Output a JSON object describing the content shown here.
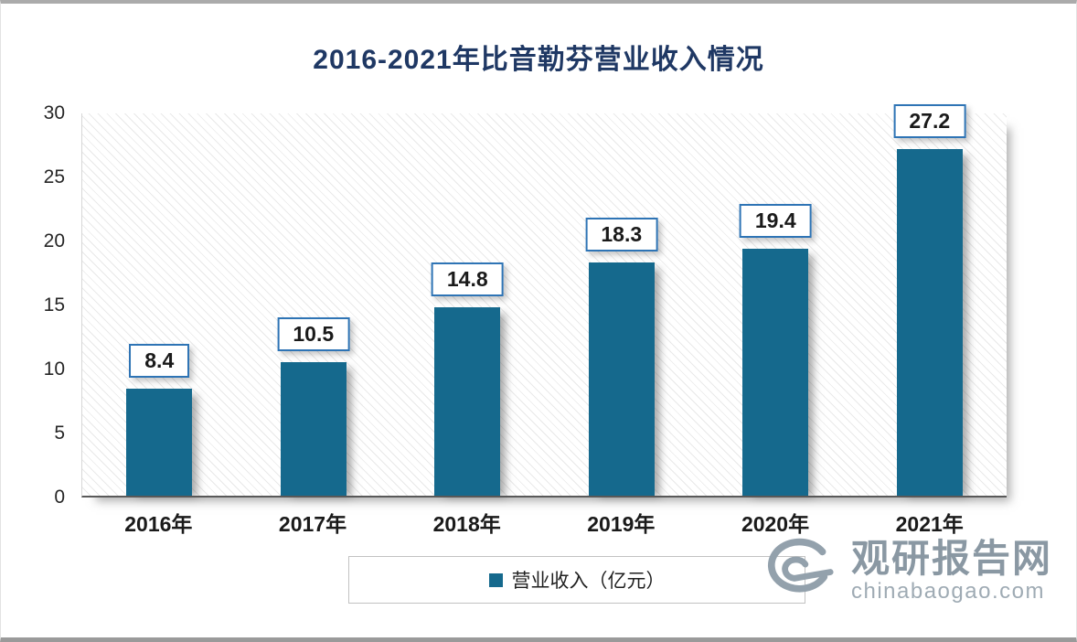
{
  "chart_data": {
    "type": "bar",
    "title": "2016-2021年比音勒芬营业收入情况",
    "categories": [
      "2016年",
      "2017年",
      "2018年",
      "2019年",
      "2020年",
      "2021年"
    ],
    "values": [
      8.4,
      10.5,
      14.8,
      18.3,
      19.4,
      27.2
    ],
    "series_name": "营业收入（亿元）",
    "xlabel": "",
    "ylabel": "",
    "ylim": [
      0,
      30
    ],
    "yticks": [
      0,
      5,
      10,
      15,
      20,
      25,
      30
    ],
    "grid": false,
    "legend_position": "bottom",
    "bar_color": "#15698d",
    "label_border_color": "#2e74b5",
    "title_color": "#1f3864"
  },
  "legend": {
    "label": "营业收入（亿元）"
  },
  "watermark": {
    "name": "观研报告网",
    "url": "chinabaogao.com"
  }
}
